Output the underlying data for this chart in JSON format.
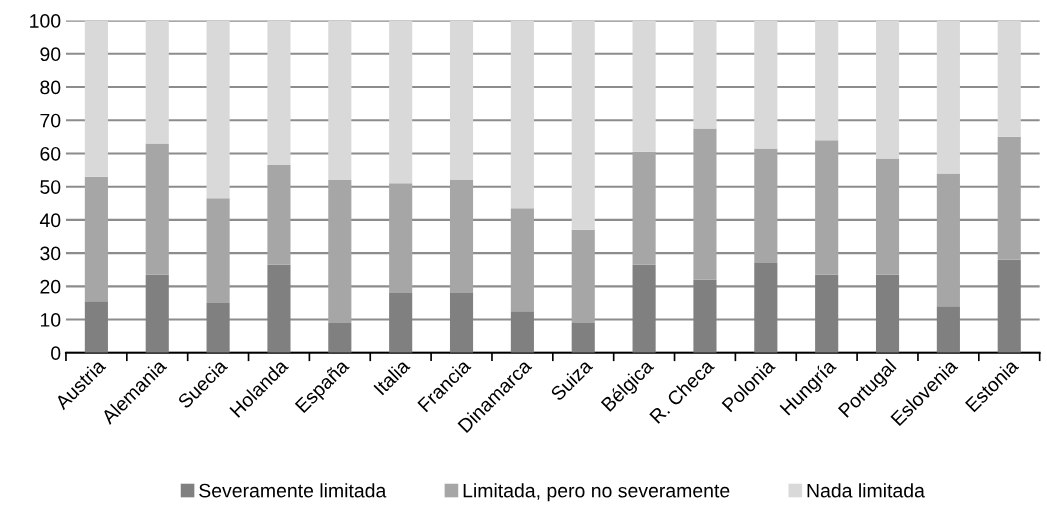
{
  "chart_data": {
    "type": "bar",
    "stacked": true,
    "categories": [
      "Austria",
      "Alemania",
      "Suecia",
      "Holanda",
      "España",
      "Italia",
      "Francia",
      "Dinamarca",
      "Suiza",
      "Bélgica",
      "R. Checa",
      "Polonia",
      "Hungría",
      "Portugal",
      "Eslovenia",
      "Estonia"
    ],
    "series": [
      {
        "name": "Severamente limitada",
        "color": "#808080",
        "values": [
          15.5,
          23.5,
          15,
          26.5,
          9,
          18,
          18,
          12.5,
          9,
          26.5,
          22,
          27,
          23.5,
          23.5,
          14,
          28
        ]
      },
      {
        "name": "Limitada, pero no severamente",
        "color": "#a6a6a6",
        "values": [
          37.5,
          39.5,
          31.5,
          30,
          43,
          33,
          34,
          31,
          28,
          34,
          45.5,
          34.5,
          40.5,
          35,
          40,
          37
        ]
      },
      {
        "name": "Nada limitada",
        "color": "#d9d9d9",
        "values": [
          47,
          37,
          53.5,
          43.5,
          48,
          49,
          48,
          56.5,
          63,
          39.5,
          32.5,
          38.5,
          36,
          41.5,
          46,
          35
        ]
      }
    ],
    "ylim": [
      0,
      100
    ],
    "yticks": [
      0,
      10,
      20,
      30,
      40,
      50,
      60,
      70,
      80,
      90,
      100
    ],
    "grid": "y",
    "legend": "bottom"
  }
}
